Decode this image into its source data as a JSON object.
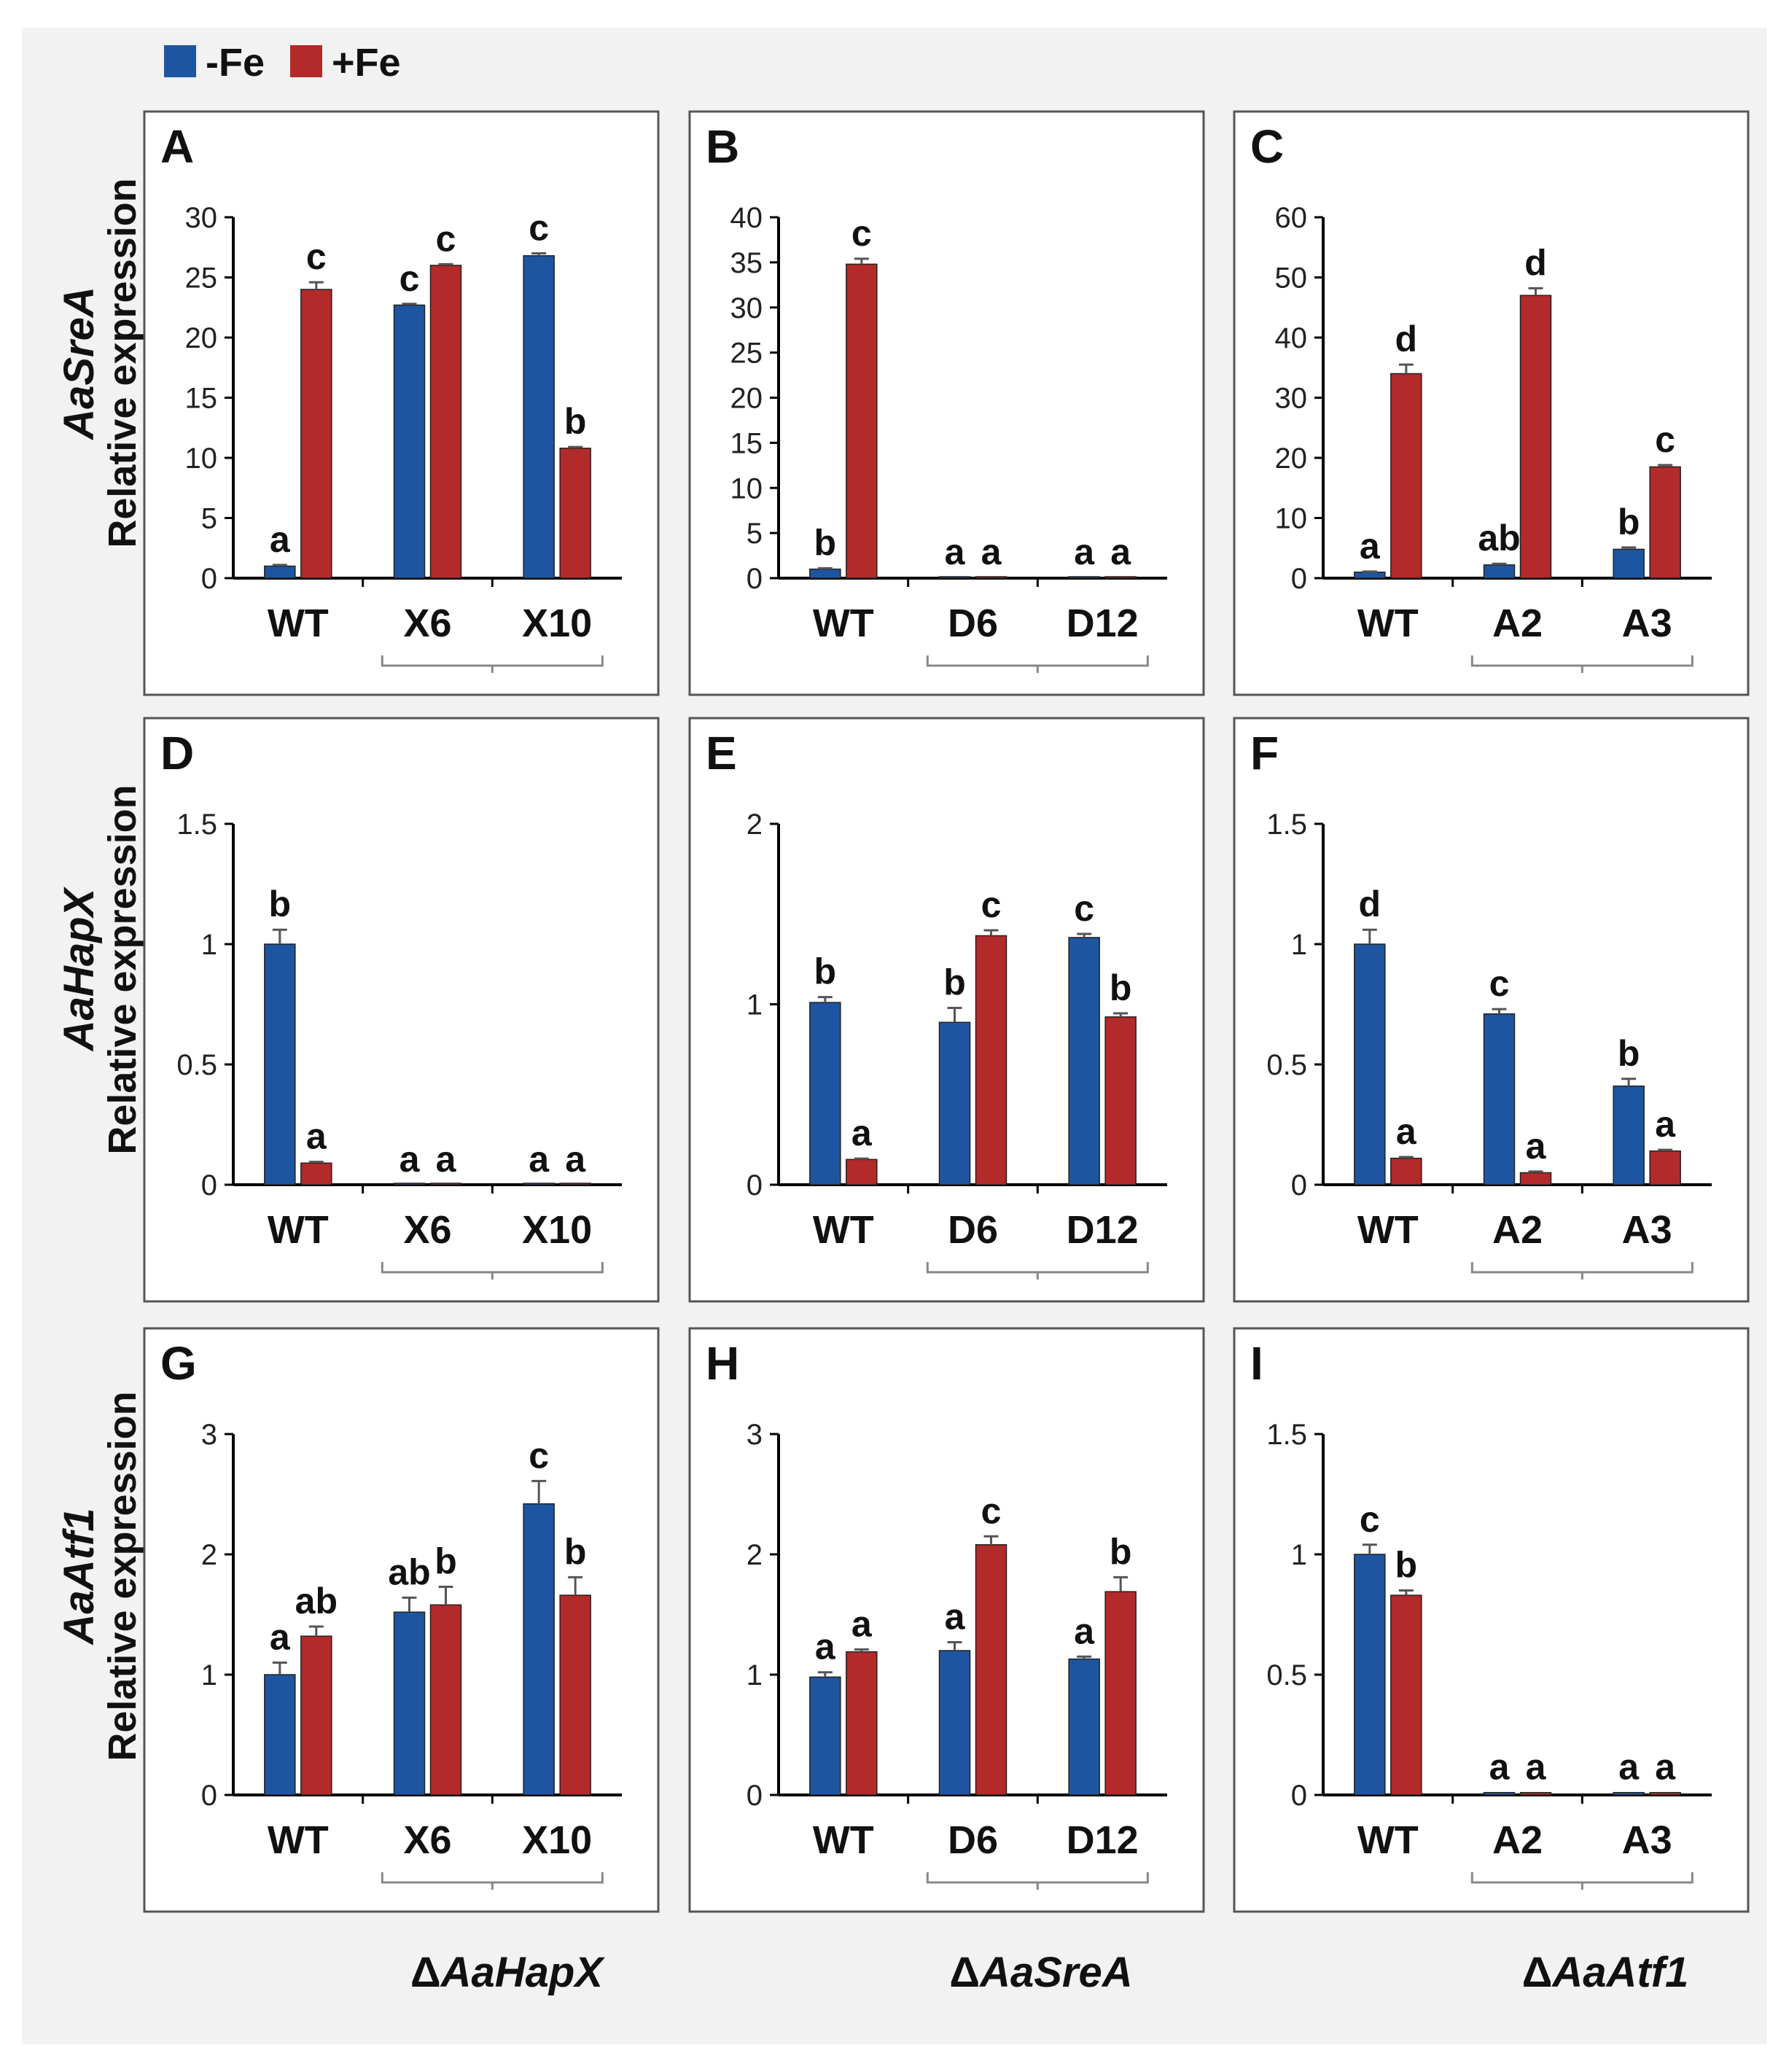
{
  "legend": [
    {
      "label": "-Fe",
      "color": "#1e55a0"
    },
    {
      "label": "+Fe",
      "color": "#b22a2a"
    }
  ],
  "colors": {
    "minus_fe": "#1e55a0",
    "plus_fe": "#b22a2a"
  },
  "row_labels": {
    "gene": [
      "AaSreA",
      "AaHapX",
      "AaAtf1"
    ],
    "ylabel": "Relative expression"
  },
  "mutant_labels": [
    "ΔAaHapX",
    "ΔAaSreA",
    "ΔAaAtf1"
  ],
  "chart_data": [
    {
      "panel": "A",
      "type": "bar",
      "categories": [
        "WT",
        "X6",
        "X10"
      ],
      "ylim": [
        0,
        30
      ],
      "yticks": [
        "0",
        "5",
        "10",
        "15",
        "20",
        "25",
        "30"
      ],
      "series": [
        {
          "name": "-Fe",
          "values": [
            1,
            22.7,
            26.8
          ],
          "errors": [
            0.1,
            0.1,
            0.2
          ],
          "letters": [
            "a",
            "c",
            "c"
          ]
        },
        {
          "name": "+Fe",
          "values": [
            24,
            26,
            10.8
          ],
          "errors": [
            0.6,
            0.1,
            0.1
          ],
          "letters": [
            "c",
            "c",
            "b"
          ]
        }
      ]
    },
    {
      "panel": "B",
      "type": "bar",
      "categories": [
        "WT",
        "D6",
        "D12"
      ],
      "ylim": [
        0,
        40
      ],
      "yticks": [
        "0",
        "5",
        "10",
        "15",
        "20",
        "25",
        "30",
        "35",
        "40"
      ],
      "series": [
        {
          "name": "-Fe",
          "values": [
            1,
            0.1,
            0.1
          ],
          "errors": [
            0.1,
            0,
            0
          ],
          "letters": [
            "b",
            "a",
            "a"
          ]
        },
        {
          "name": "+Fe",
          "values": [
            34.8,
            0.1,
            0.1
          ],
          "errors": [
            0.6,
            0,
            0
          ],
          "letters": [
            "c",
            "a",
            "a"
          ]
        }
      ]
    },
    {
      "panel": "C",
      "type": "bar",
      "categories": [
        "WT",
        "A2",
        "A3"
      ],
      "ylim": [
        0,
        60
      ],
      "yticks": [
        "0",
        "10",
        "20",
        "30",
        "40",
        "50",
        "60"
      ],
      "series": [
        {
          "name": "-Fe",
          "values": [
            1,
            2.2,
            4.8
          ],
          "errors": [
            0.1,
            0.2,
            0.3
          ],
          "letters": [
            "a",
            "ab",
            "b"
          ]
        },
        {
          "name": "+Fe",
          "values": [
            34,
            47,
            18.5
          ],
          "errors": [
            1.5,
            1.2,
            0.3
          ],
          "letters": [
            "d",
            "d",
            "c"
          ]
        }
      ]
    },
    {
      "panel": "D",
      "type": "bar",
      "categories": [
        "WT",
        "X6",
        "X10"
      ],
      "ylim": [
        0,
        1.5
      ],
      "yticks": [
        "0",
        "0.5",
        "1",
        "1.5"
      ],
      "series": [
        {
          "name": "-Fe",
          "values": [
            1,
            0,
            0
          ],
          "errors": [
            0.06,
            0,
            0
          ],
          "letters": [
            "b",
            "a",
            "a"
          ]
        },
        {
          "name": "+Fe",
          "values": [
            0.09,
            0,
            0
          ],
          "errors": [
            0.005,
            0,
            0
          ],
          "letters": [
            "a",
            "a",
            "a"
          ]
        }
      ]
    },
    {
      "panel": "E",
      "type": "bar",
      "categories": [
        "WT",
        "D6",
        "D12"
      ],
      "ylim": [
        0,
        2
      ],
      "yticks": [
        "0",
        "1",
        "2"
      ],
      "series": [
        {
          "name": "-Fe",
          "values": [
            1.01,
            0.9,
            1.37
          ],
          "errors": [
            0.03,
            0.08,
            0.02
          ],
          "letters": [
            "b",
            "b",
            "c"
          ]
        },
        {
          "name": "+Fe",
          "values": [
            0.14,
            1.38,
            0.93
          ],
          "errors": [
            0.005,
            0.03,
            0.02
          ],
          "letters": [
            "a",
            "c",
            "b"
          ]
        }
      ]
    },
    {
      "panel": "F",
      "type": "bar",
      "categories": [
        "WT",
        "A2",
        "A3"
      ],
      "ylim": [
        0,
        1.5
      ],
      "yticks": [
        "0",
        "0.5",
        "1",
        "1.5"
      ],
      "series": [
        {
          "name": "-Fe",
          "values": [
            1,
            0.71,
            0.41
          ],
          "errors": [
            0.06,
            0.02,
            0.03
          ],
          "letters": [
            "d",
            "c",
            "b"
          ]
        },
        {
          "name": "+Fe",
          "values": [
            0.11,
            0.05,
            0.14
          ],
          "errors": [
            0.005,
            0.005,
            0.005
          ],
          "letters": [
            "a",
            "a",
            "a"
          ]
        }
      ]
    },
    {
      "panel": "G",
      "type": "bar",
      "categories": [
        "WT",
        "X6",
        "X10"
      ],
      "ylim": [
        0,
        3
      ],
      "yticks": [
        "0",
        "1",
        "2",
        "3"
      ],
      "series": [
        {
          "name": "-Fe",
          "values": [
            1.0,
            1.52,
            2.42
          ],
          "errors": [
            0.1,
            0.12,
            0.19
          ],
          "letters": [
            "a",
            "ab",
            "c"
          ]
        },
        {
          "name": "+Fe",
          "values": [
            1.32,
            1.58,
            1.66
          ],
          "errors": [
            0.08,
            0.15,
            0.15
          ],
          "letters": [
            "ab",
            "b",
            "b"
          ]
        }
      ]
    },
    {
      "panel": "H",
      "type": "bar",
      "categories": [
        "WT",
        "D6",
        "D12"
      ],
      "ylim": [
        0,
        3
      ],
      "yticks": [
        "0",
        "1",
        "2",
        "3"
      ],
      "series": [
        {
          "name": "-Fe",
          "values": [
            0.98,
            1.2,
            1.13
          ],
          "errors": [
            0.04,
            0.07,
            0.02
          ],
          "letters": [
            "a",
            "a",
            "a"
          ]
        },
        {
          "name": "+Fe",
          "values": [
            1.19,
            2.08,
            1.69
          ],
          "errors": [
            0.02,
            0.07,
            0.12
          ],
          "letters": [
            "a",
            "c",
            "b"
          ]
        }
      ]
    },
    {
      "panel": "I",
      "type": "bar",
      "categories": [
        "WT",
        "A2",
        "A3"
      ],
      "ylim": [
        0,
        1.5
      ],
      "yticks": [
        "0",
        "0.5",
        "1",
        "1.5"
      ],
      "series": [
        {
          "name": "-Fe",
          "values": [
            1,
            0.01,
            0.01
          ],
          "errors": [
            0.04,
            0,
            0
          ],
          "letters": [
            "c",
            "a",
            "a"
          ]
        },
        {
          "name": "+Fe",
          "values": [
            0.83,
            0.01,
            0.01
          ],
          "errors": [
            0.02,
            0,
            0
          ],
          "letters": [
            "b",
            "a",
            "a"
          ]
        }
      ]
    }
  ]
}
